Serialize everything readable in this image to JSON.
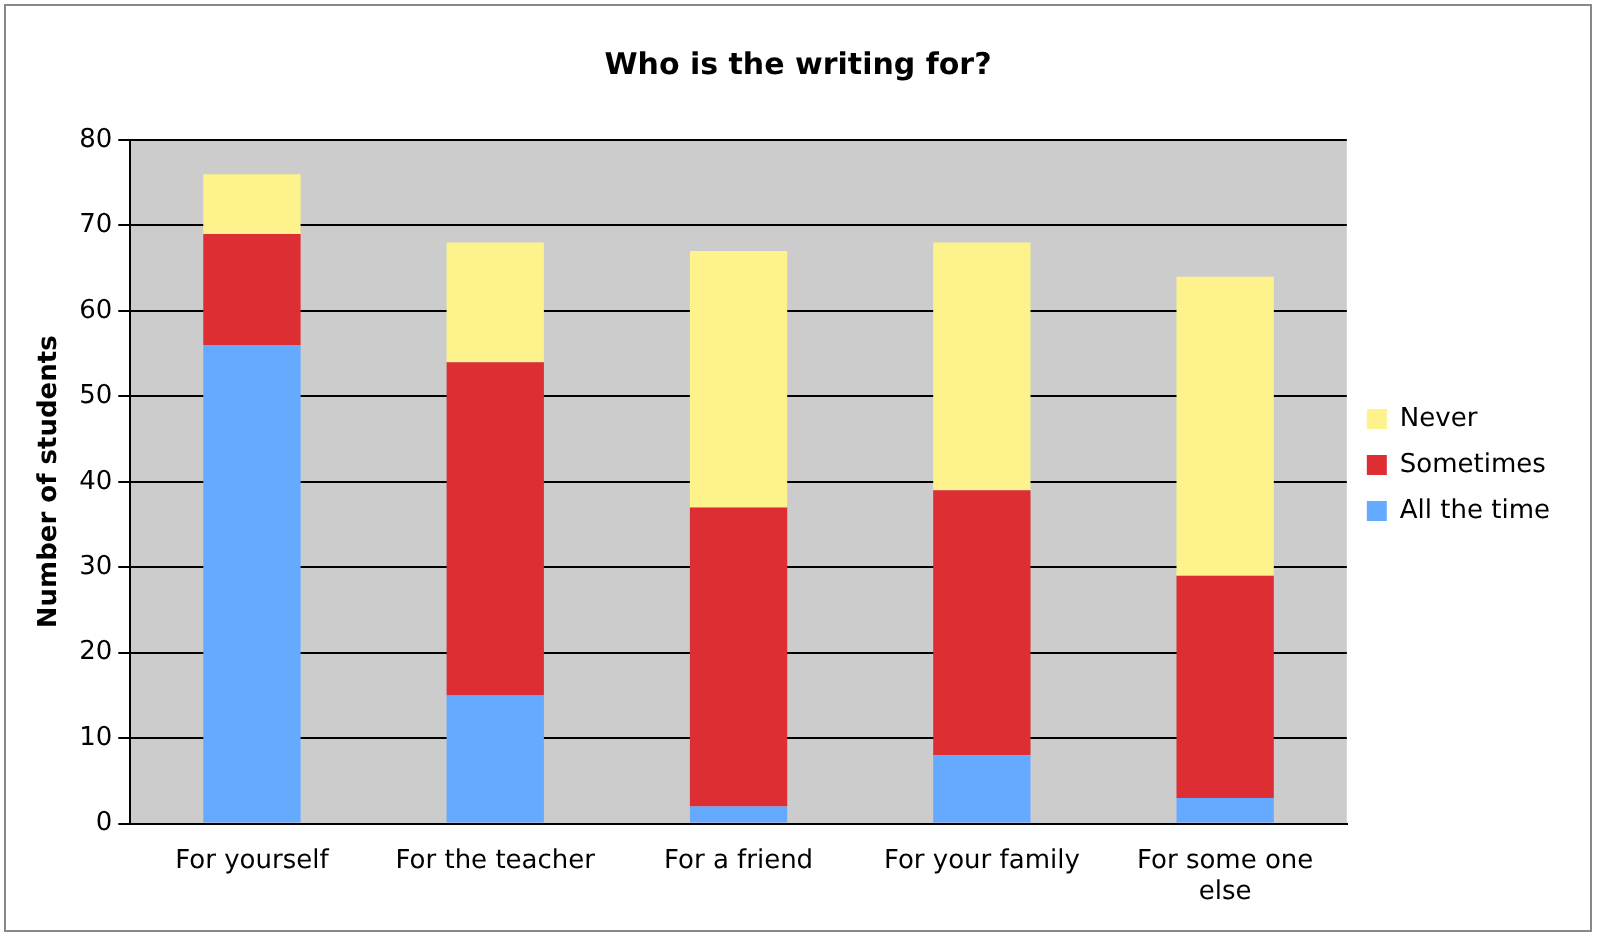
{
  "chart_data": {
    "type": "bar",
    "title": "Who is the writing for?",
    "ylabel": "Number of students",
    "categories": [
      "For yourself",
      "For the teacher",
      "For a friend",
      "For your family",
      "For some one else"
    ],
    "stacked": true,
    "series": [
      {
        "name": "All the time",
        "color": "#66aaff",
        "values": [
          56,
          15,
          2,
          8,
          3
        ]
      },
      {
        "name": "Sometimes",
        "color": "#dd2e33",
        "values": [
          13,
          39,
          35,
          31,
          26
        ]
      },
      {
        "name": "Never",
        "color": "#fdf28c",
        "values": [
          7,
          14,
          30,
          29,
          35
        ]
      }
    ],
    "ylim": [
      0,
      80
    ],
    "yticks": [
      0,
      10,
      20,
      30,
      40,
      50,
      60,
      70,
      80
    ],
    "grid": "y",
    "legend": "right"
  }
}
